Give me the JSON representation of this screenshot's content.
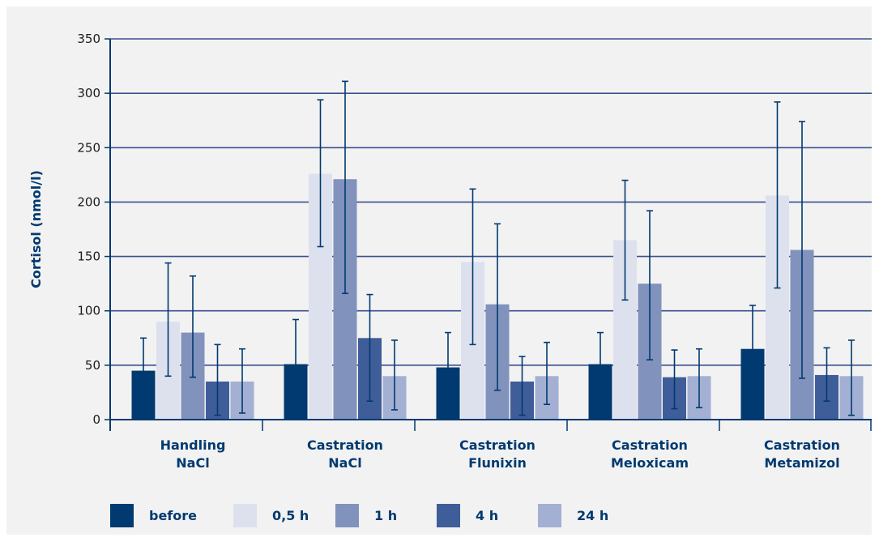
{
  "chart_data": {
    "type": "bar",
    "title": "",
    "xlabel": "",
    "ylabel": "Cortisol (nmol/l)",
    "ylim": [
      0,
      350
    ],
    "yticks": [
      0,
      50,
      100,
      150,
      200,
      250,
      300,
      350
    ],
    "grid": "horizontal",
    "legend_position": "bottom",
    "categories": [
      [
        "Handling",
        "NaCl"
      ],
      [
        "Castration",
        "NaCl"
      ],
      [
        "Castration",
        "Flunixin"
      ],
      [
        "Castration",
        "Meloxicam"
      ],
      [
        "Castration",
        "Metamizol"
      ]
    ],
    "series": [
      {
        "name": "before",
        "color": "#003a70",
        "values": [
          45,
          51,
          48,
          51,
          65
        ],
        "err_low": [
          14,
          11,
          17,
          21,
          15
        ],
        "err_high": [
          75,
          92,
          80,
          80,
          105
        ]
      },
      {
        "name": "0,5 h",
        "color": "#dde1ee",
        "values": [
          90,
          226,
          145,
          165,
          206
        ],
        "err_low": [
          40,
          159,
          69,
          110,
          121
        ],
        "err_high": [
          144,
          294,
          212,
          220,
          292
        ]
      },
      {
        "name": "1 h",
        "color": "#8192bd",
        "values": [
          80,
          221,
          106,
          125,
          156
        ],
        "err_low": [
          39,
          116,
          27,
          55,
          38
        ],
        "err_high": [
          132,
          311,
          180,
          192,
          274
        ]
      },
      {
        "name": "4 h",
        "color": "#3f5d98",
        "values": [
          35,
          75,
          35,
          39,
          41
        ],
        "err_low": [
          4,
          17,
          4,
          10,
          17
        ],
        "err_high": [
          69,
          115,
          58,
          64,
          66
        ]
      },
      {
        "name": "24 h",
        "color": "#a4b0d3",
        "values": [
          35,
          40,
          40,
          40,
          40
        ],
        "err_low": [
          6,
          9,
          14,
          11,
          4
        ],
        "err_high": [
          65,
          73,
          71,
          65,
          73
        ]
      }
    ]
  }
}
